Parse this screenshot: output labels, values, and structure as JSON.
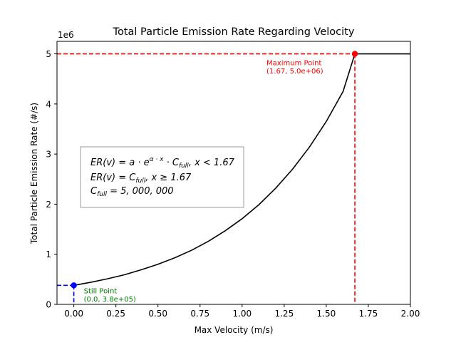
{
  "chart_data": {
    "type": "line",
    "title": "Total Particle Emission Rate Regarding Velocity",
    "xlabel": "Max Velocity (m/s)",
    "ylabel": "Total Particle Emission Rate (#/s)",
    "y_offset_label": "1e6",
    "xlim": [
      -0.1,
      2.0
    ],
    "ylim": [
      0,
      5250000
    ],
    "x_ticks": [
      0.0,
      0.25,
      0.5,
      0.75,
      1.0,
      1.25,
      1.5,
      1.75,
      2.0
    ],
    "x_tick_labels": [
      "0.00",
      "0.25",
      "0.50",
      "0.75",
      "1.00",
      "1.25",
      "1.50",
      "1.75",
      "2.00"
    ],
    "y_ticks": [
      0,
      1000000,
      2000000,
      3000000,
      4000000,
      5000000
    ],
    "y_tick_labels": [
      "0",
      "1",
      "2",
      "3",
      "4",
      "5"
    ],
    "grid": false,
    "curve": {
      "color": "#000000",
      "x": [
        0.0,
        0.1,
        0.2,
        0.3,
        0.4,
        0.5,
        0.6,
        0.7,
        0.8,
        0.9,
        1.0,
        1.1,
        1.2,
        1.3,
        1.4,
        1.5,
        1.6,
        1.67,
        1.8,
        1.9,
        2.0
      ],
      "y": [
        380000,
        440000,
        510000,
        590000,
        690000,
        800000,
        930000,
        1080000,
        1260000,
        1470000,
        1710000,
        1990000,
        2320000,
        2700000,
        3140000,
        3650000,
        4250000,
        5000000,
        5000000,
        5000000,
        5000000
      ]
    },
    "points": [
      {
        "label_lines": [
          "Still Point",
          "(0.0,  3.8e+05)"
        ],
        "x": 0.0,
        "y": 380000,
        "color": "#0000ff",
        "label_color": "#008000"
      },
      {
        "label_lines": [
          "Maximum Point",
          "(1.67,  5.0e+06)"
        ],
        "x": 1.67,
        "y": 5000000,
        "color": "#ff0000",
        "label_color": "#ff0000"
      }
    ],
    "legend_box": {
      "lines": [
        {
          "base": "ER(v) = a · e",
          "sup": "α · x",
          "rest": " · C",
          "sub": "full",
          "tail": ", x < 1.67"
        },
        {
          "base": "ER(v) = C",
          "sub": "full",
          "tail": ", x ≥ 1.67"
        },
        {
          "base": "C",
          "sub": "full",
          "tail": " = 5, 000, 000"
        }
      ]
    }
  }
}
